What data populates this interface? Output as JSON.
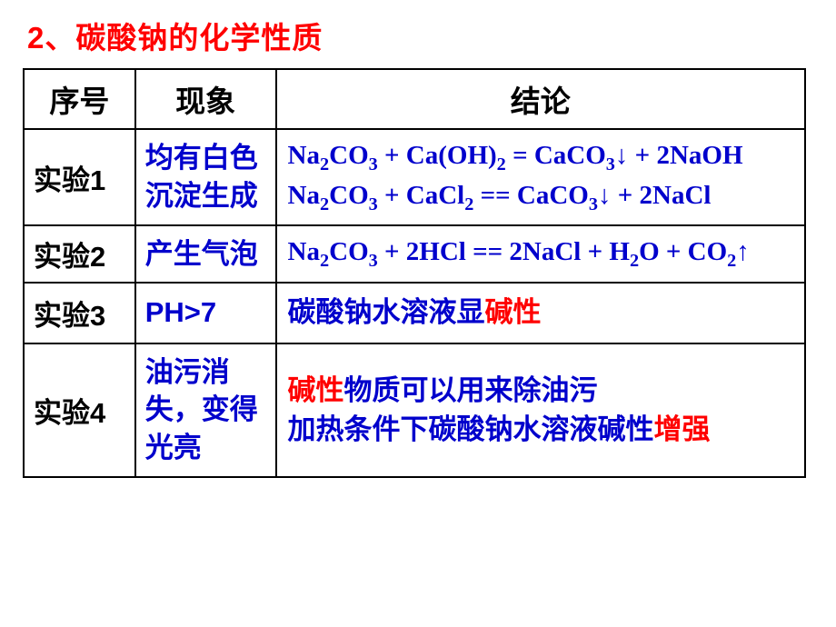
{
  "title": {
    "number": "2、",
    "text": "碳酸钠的化学性质",
    "number_color": "#ff0000",
    "text_color": "#ff0000"
  },
  "colors": {
    "red": "#ff0000",
    "blue": "#0000cc",
    "black": "#000000",
    "border": "#000000",
    "background": "#ffffff"
  },
  "table": {
    "headers": {
      "col1": "序号",
      "col2": "现象",
      "col3": "结论"
    },
    "rows": [
      {
        "index": "实验1",
        "phenom": "均有白色沉淀生成",
        "conclusion_eq1_parts": {
          "l1a": "Na",
          "l1b": "CO",
          "l1c": " + Ca(OH)",
          "l1d": " = CaCO",
          "l1e": "↓ + 2NaOH"
        },
        "conclusion_eq2_parts": {
          "l2a": " Na",
          "l2b": "CO",
          "l2c": " + CaCl",
          "l2d": " == CaCO",
          "l2e": "↓ +  2NaCl"
        },
        "sub2": "2",
        "sub3": "3"
      },
      {
        "index": "实验2",
        "phenom": "产生气泡",
        "conclusion_parts": {
          "p1": "Na",
          "p2": "CO",
          "p3": " + 2HCl == 2NaCl + H",
          "p4": "O + CO",
          "p5": "↑"
        },
        "sub2": "2",
        "sub3": "3"
      },
      {
        "index": "实验3",
        "phenom": "PH>7",
        "conclusion_parts": {
          "p1": "碳酸钠水溶液显",
          "p2": "碱性"
        }
      },
      {
        "index": "实验4",
        "phenom": "油污消失，变得光亮",
        "conclusion_parts": {
          "p1": "碱性",
          "p2": "物质可以用来除油污",
          "p3": " 加热条件下碳酸钠水溶液碱性",
          "p4": "增强"
        }
      }
    ]
  }
}
